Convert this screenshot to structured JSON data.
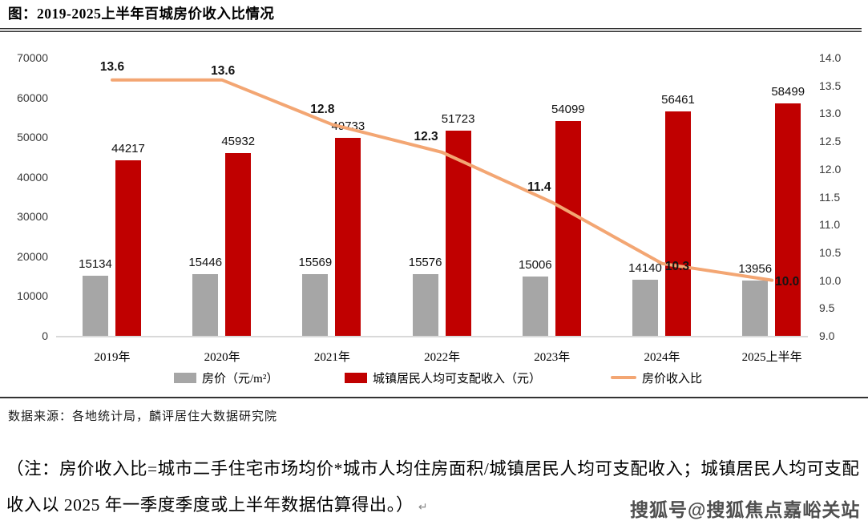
{
  "title": "图：2019-2025上半年百城房价收入比情况",
  "source": "数据来源：各地统计局，麟评居住大数据研究院",
  "note_line": "（注：房价收入比=城市二手住宅市场均价*城市人均住房面积/城镇居民人均可支配收入；城镇居民人均可支配收入以 2025 年一季度季度或上半年数据估算得出。）",
  "note_return_mark": "↵",
  "watermark": "搜狐号@搜狐焦点嘉峪关站",
  "colors": {
    "bar_price": "#A6A6A6",
    "bar_income": "#C00000",
    "line_ratio": "#F3A673",
    "axis_baseline": "#D9D9D9"
  },
  "chart_data": {
    "type": "bar",
    "subtype": "grouped bars with secondary-axis line",
    "categories": [
      "2019年",
      "2020年",
      "2021年",
      "2022年",
      "2023年",
      "2024年",
      "2025上半年"
    ],
    "series": [
      {
        "name": "房价（元/m²）",
        "type": "bar",
        "axis": "left",
        "color_key": "bar_price",
        "values": [
          15134,
          15446,
          15569,
          15576,
          15006,
          14140,
          13956
        ]
      },
      {
        "name": "城镇居民人均可支配收入（元）",
        "type": "bar",
        "axis": "left",
        "color_key": "bar_income",
        "values": [
          44217,
          45932,
          49733,
          51723,
          54099,
          56461,
          58499
        ]
      },
      {
        "name": "房价收入比",
        "type": "line",
        "axis": "right",
        "color_key": "line_ratio",
        "values": [
          13.6,
          13.6,
          12.8,
          12.3,
          11.4,
          10.3,
          10.0
        ]
      }
    ],
    "left_axis": {
      "min": 0,
      "max": 70000,
      "ticks": [
        "0",
        "10000",
        "20000",
        "30000",
        "40000",
        "50000",
        "60000",
        "70000"
      ]
    },
    "right_axis": {
      "min": 9.0,
      "max": 14.0,
      "ticks": [
        "9.0",
        "9.5",
        "10.0",
        "10.5",
        "11.0",
        "11.5",
        "12.0",
        "12.5",
        "13.0",
        "13.5",
        "14.0"
      ]
    },
    "grid": false,
    "legend_position": "bottom",
    "data_labels": true
  }
}
